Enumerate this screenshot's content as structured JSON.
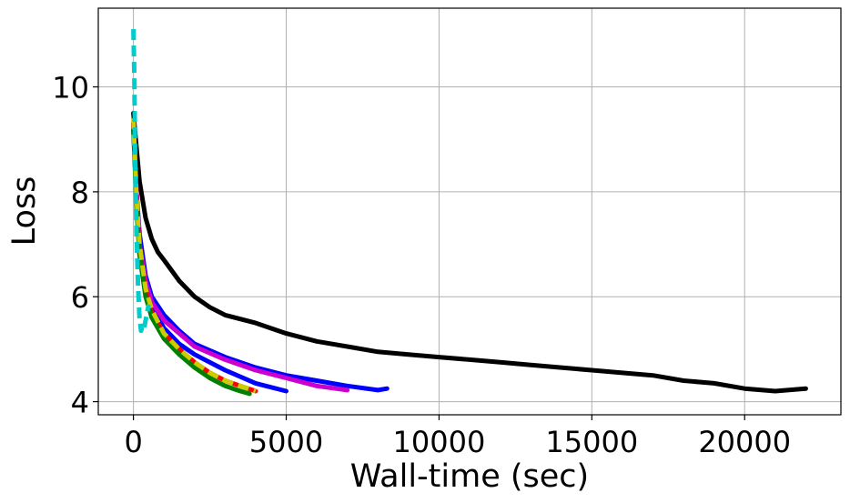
{
  "chart_data": {
    "type": "line",
    "xlabel": "Wall-time (sec)",
    "ylabel": "Loss",
    "xlim": [
      -1150,
      23150
    ],
    "ylim": [
      3.75,
      11.5
    ],
    "xticks": [
      0,
      5000,
      10000,
      15000,
      20000
    ],
    "xtick_labels": [
      "0",
      "5000",
      "10000",
      "15000",
      "20000"
    ],
    "yticks": [
      4,
      6,
      8,
      10
    ],
    "ytick_labels": [
      "4",
      "6",
      "8",
      "10"
    ],
    "grid": true,
    "series": [
      {
        "color": "#000000",
        "style": "solid",
        "x": [
          0,
          200,
          400,
          600,
          800,
          1000,
          1500,
          2000,
          2500,
          3000,
          4000,
          5000,
          6000,
          7000,
          8000,
          9000,
          10000,
          11000,
          12000,
          13000,
          14000,
          15000,
          16000,
          17000,
          18000,
          19000,
          20000,
          21000,
          22000
        ],
        "y": [
          9.5,
          8.2,
          7.5,
          7.1,
          6.85,
          6.7,
          6.3,
          6.0,
          5.8,
          5.65,
          5.5,
          5.3,
          5.15,
          5.05,
          4.95,
          4.9,
          4.85,
          4.8,
          4.75,
          4.7,
          4.65,
          4.6,
          4.55,
          4.5,
          4.4,
          4.35,
          4.25,
          4.2,
          4.25
        ]
      },
      {
        "color": "#0000ff",
        "style": "solid",
        "x": [
          0,
          100,
          200,
          400,
          600,
          1000,
          1500,
          2000,
          3000,
          4000,
          5000,
          6000,
          7000,
          8000,
          8300
        ],
        "y": [
          9.3,
          8.0,
          7.2,
          6.4,
          6.0,
          5.65,
          5.35,
          5.1,
          4.85,
          4.65,
          4.5,
          4.4,
          4.3,
          4.22,
          4.25
        ]
      },
      {
        "color": "#0000ff",
        "style": "solid",
        "x": [
          0,
          100,
          200,
          400,
          600,
          1000,
          1500,
          2000,
          3000,
          4000,
          5000
        ],
        "y": [
          9.2,
          7.9,
          7.1,
          6.2,
          5.8,
          5.4,
          5.1,
          4.9,
          4.6,
          4.35,
          4.2
        ]
      },
      {
        "color": "#cc00cc",
        "style": "solid",
        "x": [
          0,
          100,
          200,
          400,
          600,
          1000,
          1500,
          2000,
          3000,
          4000,
          5000,
          6000,
          7000
        ],
        "y": [
          9.3,
          8.0,
          7.0,
          6.3,
          5.9,
          5.55,
          5.3,
          5.05,
          4.8,
          4.6,
          4.45,
          4.3,
          4.22
        ]
      },
      {
        "color": "#ff0000",
        "style": "solid",
        "x": [
          0,
          100,
          200,
          400,
          600,
          1000,
          1500,
          2000,
          2500,
          3000,
          3500,
          4000
        ],
        "y": [
          9.3,
          7.8,
          6.9,
          6.1,
          5.7,
          5.3,
          5.0,
          4.75,
          4.55,
          4.4,
          4.3,
          4.2
        ]
      },
      {
        "color": "#008000",
        "style": "solid",
        "x": [
          0,
          100,
          200,
          400,
          600,
          1000,
          1500,
          2000,
          2500,
          3000,
          3500,
          3800
        ],
        "y": [
          9.2,
          7.7,
          6.8,
          6.0,
          5.6,
          5.2,
          4.9,
          4.65,
          4.45,
          4.3,
          4.2,
          4.15
        ]
      },
      {
        "color": "#cccc00",
        "style": "dashed",
        "x": [
          0,
          100,
          200,
          400,
          600,
          1000,
          1500,
          2000,
          2500,
          3000,
          3500,
          4000
        ],
        "y": [
          9.4,
          7.9,
          7.0,
          6.15,
          5.75,
          5.3,
          5.0,
          4.75,
          4.55,
          4.4,
          4.3,
          4.2
        ]
      },
      {
        "color": "#00cccc",
        "style": "dashed",
        "x": [
          0,
          30,
          60,
          100,
          150,
          200,
          250,
          300,
          350,
          400,
          450,
          500
        ],
        "y": [
          11.1,
          10.2,
          8.5,
          7.2,
          6.2,
          5.6,
          5.35,
          5.45,
          5.4,
          5.55,
          5.7,
          5.85
        ]
      }
    ]
  }
}
